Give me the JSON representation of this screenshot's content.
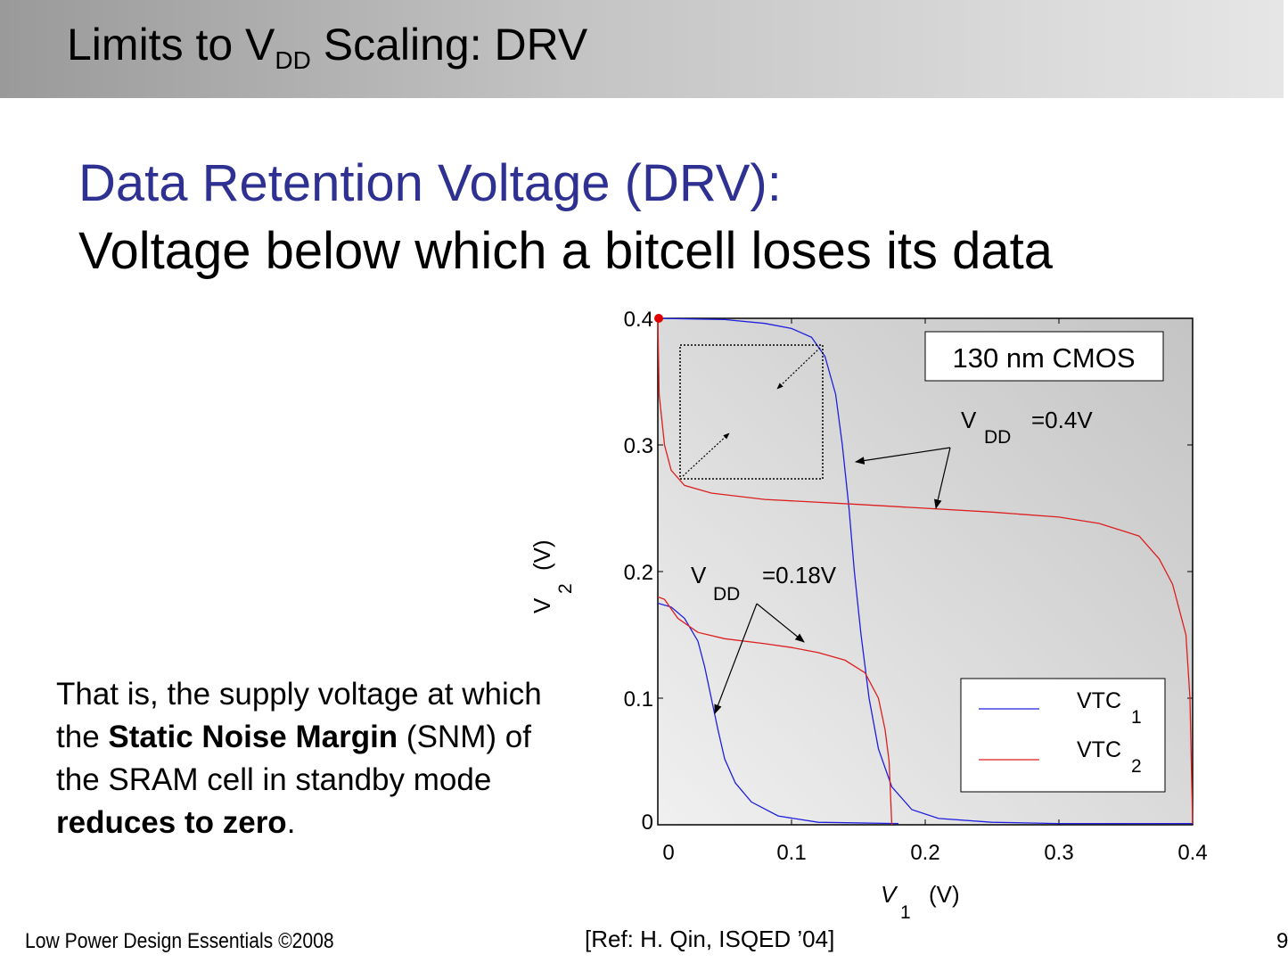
{
  "slide": {
    "title": "Limits to V",
    "title_sub": "DD",
    "title_rest": " Scaling: DRV",
    "heading": "Data Retention Voltage (DRV):",
    "subheading": "Voltage below which a bitcell loses its data",
    "paragraph": {
      "p1": "That is, the supply voltage at which the ",
      "b1": "Static Noise Margin",
      "p2": " (SNM) of the SRAM cell in standby mode ",
      "b2": "reduces to zero",
      "p3": "."
    },
    "footer_left": "Low Power Design Essentials ©2008",
    "footer_ref": "[Ref: H. Qin, ISQED ’04]",
    "page_number": "9"
  },
  "colors": {
    "heading": "#2e3192",
    "vtc1": "#1f1fdd",
    "vtc2": "#dd1f1f",
    "plot_bg_dark": "#c4c4c4",
    "plot_bg_light": "#f0f0f0"
  },
  "chart_data": {
    "type": "line",
    "xlabel": "V",
    "xlabel_sub": "1",
    "xlabel_unit": "(V)",
    "ylabel": "V",
    "ylabel_sub": "2",
    "ylabel_unit": "(V)",
    "xlim": [
      0,
      0.4
    ],
    "ylim": [
      0,
      0.4
    ],
    "xticks": [
      "0",
      "0.1",
      "0.2",
      "0.3",
      "0.4"
    ],
    "yticks": [
      "0",
      "0.1",
      "0.2",
      "0.3",
      "0.4"
    ],
    "annotation_box": "130 nm CMOS",
    "annotations": [
      {
        "label": "V",
        "sub": "DD",
        "rest": "=0.4V"
      },
      {
        "label": "V",
        "sub": "DD",
        "rest": "=0.18V"
      }
    ],
    "legend": [
      {
        "label": "VTC",
        "sub": "1",
        "color": "#1f1fdd"
      },
      {
        "label": "VTC",
        "sub": "2",
        "color": "#dd1f1f"
      }
    ],
    "legend_position": "bottom-right",
    "series": [
      {
        "name": "VTC1",
        "vdd": 0.4,
        "points": [
          [
            0,
            0.4
          ],
          [
            0.05,
            0.399
          ],
          [
            0.08,
            0.396
          ],
          [
            0.1,
            0.392
          ],
          [
            0.115,
            0.385
          ],
          [
            0.125,
            0.37
          ],
          [
            0.133,
            0.34
          ],
          [
            0.138,
            0.3
          ],
          [
            0.143,
            0.25
          ],
          [
            0.147,
            0.2
          ],
          [
            0.152,
            0.15
          ],
          [
            0.158,
            0.1
          ],
          [
            0.165,
            0.06
          ],
          [
            0.175,
            0.03
          ],
          [
            0.19,
            0.012
          ],
          [
            0.21,
            0.005
          ],
          [
            0.25,
            0.002
          ],
          [
            0.3,
            0.001
          ],
          [
            0.4,
            0.001
          ]
        ]
      },
      {
        "name": "VTC2",
        "vdd": 0.4,
        "points": [
          [
            0,
            0.4
          ],
          [
            0.001,
            0.34
          ],
          [
            0.005,
            0.3
          ],
          [
            0.01,
            0.28
          ],
          [
            0.02,
            0.268
          ],
          [
            0.04,
            0.262
          ],
          [
            0.08,
            0.257
          ],
          [
            0.15,
            0.253
          ],
          [
            0.2,
            0.25
          ],
          [
            0.25,
            0.247
          ],
          [
            0.3,
            0.243
          ],
          [
            0.33,
            0.238
          ],
          [
            0.36,
            0.228
          ],
          [
            0.375,
            0.21
          ],
          [
            0.385,
            0.19
          ],
          [
            0.39,
            0.17
          ],
          [
            0.395,
            0.15
          ],
          [
            0.398,
            0.1
          ],
          [
            0.399,
            0.05
          ],
          [
            0.4,
            0.001
          ]
        ]
      },
      {
        "name": "VTC1",
        "vdd": 0.18,
        "points": [
          [
            0,
            0.175
          ],
          [
            0.01,
            0.172
          ],
          [
            0.02,
            0.163
          ],
          [
            0.03,
            0.145
          ],
          [
            0.035,
            0.125
          ],
          [
            0.04,
            0.1
          ],
          [
            0.045,
            0.075
          ],
          [
            0.05,
            0.052
          ],
          [
            0.058,
            0.033
          ],
          [
            0.07,
            0.018
          ],
          [
            0.09,
            0.007
          ],
          [
            0.12,
            0.002
          ],
          [
            0.18,
            0.001
          ]
        ]
      },
      {
        "name": "VTC2",
        "vdd": 0.18,
        "points": [
          [
            0,
            0.18
          ],
          [
            0.005,
            0.178
          ],
          [
            0.015,
            0.163
          ],
          [
            0.03,
            0.152
          ],
          [
            0.05,
            0.147
          ],
          [
            0.08,
            0.143
          ],
          [
            0.1,
            0.14
          ],
          [
            0.12,
            0.136
          ],
          [
            0.14,
            0.13
          ],
          [
            0.155,
            0.12
          ],
          [
            0.165,
            0.1
          ],
          [
            0.17,
            0.075
          ],
          [
            0.173,
            0.05
          ],
          [
            0.175,
            0.0
          ]
        ]
      }
    ]
  }
}
